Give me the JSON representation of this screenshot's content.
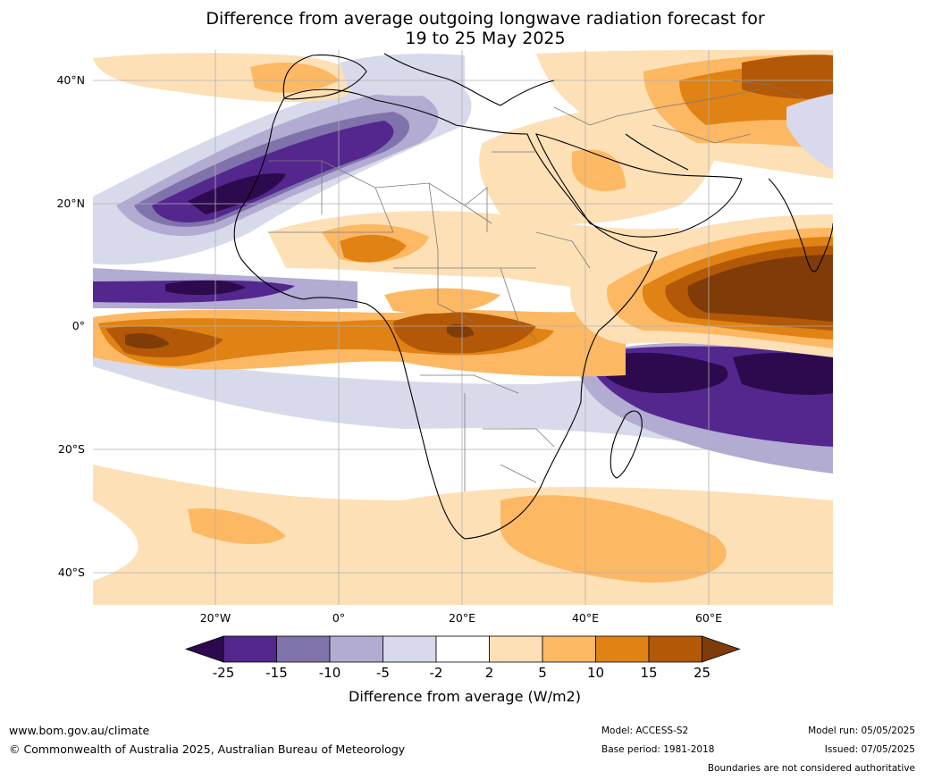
{
  "title_line1": "Difference from average outgoing longwave radiation forecast for",
  "title_line2": "19 to 25 May 2025",
  "lat_labels": [
    "40°N",
    "20°N",
    "0°",
    "20°S",
    "40°S"
  ],
  "lon_labels": [
    "20°W",
    "0°",
    "20°E",
    "40°E",
    "60°E"
  ],
  "colorbar": {
    "ticks": [
      "-25",
      "-15",
      "-10",
      "-5",
      "-2",
      "2",
      "5",
      "10",
      "15",
      "25"
    ],
    "colors": [
      "#2d0a4e",
      "#54278f",
      "#8073ac",
      "#b2abd2",
      "#d8daeb",
      "#ffffff",
      "#fee0b6",
      "#fdb863",
      "#e08214",
      "#b35806",
      "#7f3b08"
    ],
    "label": "Difference from average (W/m2)"
  },
  "footer": {
    "website": "www.bom.gov.au/climate",
    "copyright": "© Commonwealth of Australia 2025, Australian Bureau of Meteorology",
    "model": "Model: ACCESS-S2",
    "base_period": "Base period: 1981-2018",
    "model_run": "Model run: 05/05/2025",
    "issued": "Issued: 07/05/2025",
    "disclaimer": "Boundaries are not considered authoritative"
  }
}
